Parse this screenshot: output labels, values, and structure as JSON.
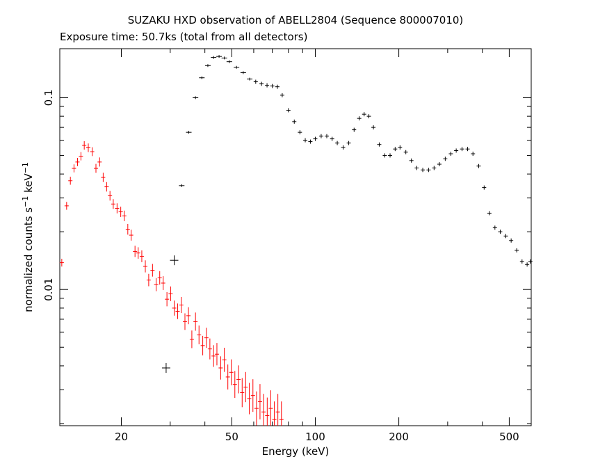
{
  "chart_data": {
    "type": "scatter",
    "title": "SUZAKU HXD observation of ABELL2804 (Sequence 800007010)",
    "subtitle": "Exposure time: 50.7ks (total from all detectors)",
    "xlabel": "Energy (keV)",
    "ylabel": "normalized counts s",
    "ylabel_sup1": "−1",
    "ylabel_mid": " keV",
    "ylabel_sup2": "−1",
    "x_scale": "log",
    "y_scale": "log",
    "xlim": [
      12,
      600
    ],
    "ylim": [
      0.00195,
      0.18
    ],
    "x_ticks": [
      20,
      50,
      100,
      200,
      500
    ],
    "x_tick_labels": [
      "20",
      "50",
      "100",
      "200",
      "500"
    ],
    "y_ticks": [
      0.01,
      0.1
    ],
    "y_tick_labels": [
      "0.01",
      "0.1"
    ],
    "grid": false,
    "series": [
      {
        "color": "#000000",
        "points": [
          [
            29,
            0.0039
          ],
          [
            31,
            0.0142
          ],
          [
            33,
            0.0348
          ],
          [
            35,
            0.066
          ],
          [
            37,
            0.1
          ],
          [
            39,
            0.127
          ],
          [
            41,
            0.147
          ],
          [
            43,
            0.162
          ],
          [
            45,
            0.164
          ],
          [
            47,
            0.161
          ],
          [
            49,
            0.154
          ],
          [
            52,
            0.144
          ],
          [
            55,
            0.135
          ],
          [
            58,
            0.125
          ],
          [
            61,
            0.121
          ],
          [
            64,
            0.118
          ],
          [
            67,
            0.116
          ],
          [
            70,
            0.115
          ],
          [
            73,
            0.114
          ],
          [
            76,
            0.103
          ],
          [
            80,
            0.086
          ],
          [
            84,
            0.075
          ],
          [
            88,
            0.066
          ],
          [
            92,
            0.06
          ],
          [
            96,
            0.059
          ],
          [
            100,
            0.061
          ],
          [
            105,
            0.063
          ],
          [
            110,
            0.063
          ],
          [
            115,
            0.061
          ],
          [
            120,
            0.058
          ],
          [
            126,
            0.055
          ],
          [
            132,
            0.058
          ],
          [
            138,
            0.068
          ],
          [
            144,
            0.078
          ],
          [
            150,
            0.082
          ],
          [
            156,
            0.08
          ],
          [
            162,
            0.07
          ],
          [
            170,
            0.057
          ],
          [
            178,
            0.05
          ],
          [
            186,
            0.05
          ],
          [
            194,
            0.054
          ],
          [
            202,
            0.055
          ],
          [
            212,
            0.052
          ],
          [
            222,
            0.047
          ],
          [
            232,
            0.043
          ],
          [
            244,
            0.042
          ],
          [
            256,
            0.042
          ],
          [
            268,
            0.043
          ],
          [
            280,
            0.045
          ],
          [
            294,
            0.048
          ],
          [
            308,
            0.051
          ],
          [
            322,
            0.053
          ],
          [
            338,
            0.054
          ],
          [
            354,
            0.054
          ],
          [
            370,
            0.051
          ],
          [
            388,
            0.044
          ],
          [
            406,
            0.034
          ],
          [
            424,
            0.025
          ],
          [
            444,
            0.021
          ],
          [
            464,
            0.02
          ],
          [
            486,
            0.019
          ],
          [
            508,
            0.018
          ],
          [
            532,
            0.016
          ],
          [
            556,
            0.014
          ],
          [
            580,
            0.0135
          ],
          [
            596,
            0.014
          ]
        ]
      },
      {
        "color": "#ff0000",
        "points": [
          [
            12.2,
            0.0138
          ],
          [
            12.7,
            0.0273
          ],
          [
            13.1,
            0.0369
          ],
          [
            13.5,
            0.0428
          ],
          [
            13.9,
            0.0462
          ],
          [
            14.3,
            0.0495
          ],
          [
            14.7,
            0.0564
          ],
          [
            15.2,
            0.0548
          ],
          [
            15.7,
            0.0523
          ],
          [
            16.2,
            0.0428
          ],
          [
            16.7,
            0.0462
          ],
          [
            17.2,
            0.0384
          ],
          [
            17.7,
            0.0343
          ],
          [
            18.2,
            0.0308
          ],
          [
            18.7,
            0.0279
          ],
          [
            19.3,
            0.0265
          ],
          [
            19.9,
            0.0254
          ],
          [
            20.5,
            0.0242
          ],
          [
            21.1,
            0.0206
          ],
          [
            21.7,
            0.0192
          ],
          [
            22.4,
            0.0158
          ],
          [
            23.0,
            0.0155
          ],
          [
            23.7,
            0.0149
          ],
          [
            24.4,
            0.0132
          ],
          [
            25.1,
            0.0112
          ],
          [
            25.9,
            0.0126
          ],
          [
            26.7,
            0.0106
          ],
          [
            27.5,
            0.0115
          ],
          [
            28.3,
            0.0108
          ],
          [
            29.2,
            0.0089
          ],
          [
            30.1,
            0.0095
          ],
          [
            31.0,
            0.008
          ],
          [
            31.9,
            0.0077
          ],
          [
            32.9,
            0.0083
          ],
          [
            33.9,
            0.0068
          ],
          [
            34.9,
            0.0073
          ],
          [
            35.9,
            0.0055
          ],
          [
            37.0,
            0.0068
          ],
          [
            38.1,
            0.0058
          ],
          [
            39.3,
            0.0051
          ],
          [
            40.5,
            0.0056
          ],
          [
            41.7,
            0.0049
          ],
          [
            43.0,
            0.0045
          ],
          [
            44.2,
            0.0046
          ],
          [
            45.6,
            0.0039
          ],
          [
            47.0,
            0.0043
          ],
          [
            48.4,
            0.0035
          ],
          [
            49.8,
            0.0037
          ],
          [
            51.3,
            0.0032
          ],
          [
            52.9,
            0.0034
          ],
          [
            54.5,
            0.0029
          ],
          [
            56.1,
            0.0031
          ],
          [
            57.8,
            0.0027
          ],
          [
            59.6,
            0.0028
          ],
          [
            61.4,
            0.0024
          ],
          [
            63.2,
            0.0026
          ],
          [
            65.1,
            0.0023
          ],
          [
            67.1,
            0.0022
          ],
          [
            69.1,
            0.0024
          ],
          [
            71.2,
            0.0021
          ],
          [
            73.3,
            0.0023
          ],
          [
            75.5,
            0.0021
          ]
        ]
      }
    ]
  }
}
